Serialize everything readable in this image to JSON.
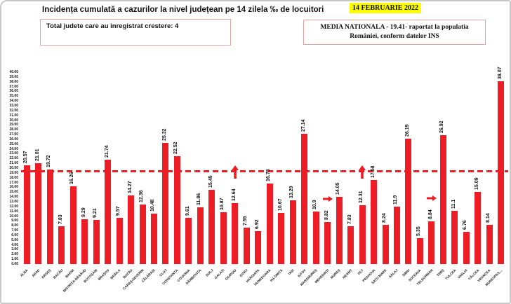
{
  "header": {
    "title": "Incidența cumulată a cazurilor la nivel județean pe 14 zilela ‰ de locuitori",
    "date": "14 FEBRUARIE 2022",
    "growth_box_text": "Total judete care au inregistrat crestere: 4",
    "media_box_line1": "MEDIA NATIONALA - 19.41-  raportat la populatia",
    "media_box_line2": "României, conform datelor INS"
  },
  "colors": {
    "bar": "#ee1c25",
    "avg_line": "#ee1c25",
    "box_border": "#e2a3a3",
    "date_highlight": "#ffff00",
    "text": "#111111"
  },
  "chart_data": {
    "type": "bar",
    "title": "Incidența cumulată a cazurilor la nivel județean pe 14 zilela ‰ de locuitori",
    "xlabel": "",
    "ylabel": "",
    "ylim": [
      0,
      40
    ],
    "ytick_step": 1.0,
    "grid": false,
    "legend": false,
    "national_average": 19.41,
    "avg_line_style": "dashed",
    "categories": [
      "ALBA",
      "ARAD",
      "ARGEȘ",
      "BACĂU",
      "BIHOR",
      "BISTRIȚA-NĂSĂUD",
      "BOTOȘANI",
      "BRAȘOV",
      "BRĂILA",
      "BUZĂU",
      "CARAȘ-SEVERIN",
      "CĂLĂRAȘI",
      "CLUJ",
      "CONSTANȚA",
      "COVASNA",
      "DÂMBOVIȚA",
      "DOLJ",
      "GALAȚI",
      "GIURGIU",
      "GORJ",
      "HARGHITA",
      "HUNEDOARA",
      "IALOMIȚA",
      "IAȘI",
      "ILFOV",
      "MARAMUREȘ",
      "MEHEDINȚI",
      "MUREȘ",
      "NEAMȚ",
      "OLT",
      "PRAHOVA",
      "SATU MARE",
      "SĂLAJ",
      "SIBIU",
      "SUCEAVA",
      "TELEORMAN",
      "TIMIȘ",
      "TULCEA",
      "VASLUI",
      "VÂLCEA",
      "VRANCEA",
      "MUNICIPIUL..."
    ],
    "values": [
      "20.57",
      "21.01",
      "19.72",
      "7.83",
      "16.26",
      "9.29",
      "9.21",
      "21.74",
      "9.57",
      "14.27",
      "12.36",
      "10.48",
      "25.32",
      "22.52",
      "9.61",
      "11.86",
      "15.45",
      "10.87",
      "12.64",
      "7.55",
      "6.92",
      "16.73",
      "10.67",
      "13.29",
      "27.14",
      "10.9",
      "8.82",
      "14.05",
      "7.83",
      "12.31",
      "17.58",
      "8.24",
      "11.9",
      "26.19",
      "5.35",
      "8.84",
      "26.92",
      "11.1",
      "6.76",
      "15.09",
      "8.14",
      "38.07"
    ],
    "increase_markers": [
      {
        "county": "GIURGIU",
        "direction": "up"
      },
      {
        "county": "MEHEDINȚI",
        "direction": "right"
      },
      {
        "county": "OLT",
        "direction": "up"
      },
      {
        "county": "TELEORMAN",
        "direction": "right"
      }
    ]
  }
}
